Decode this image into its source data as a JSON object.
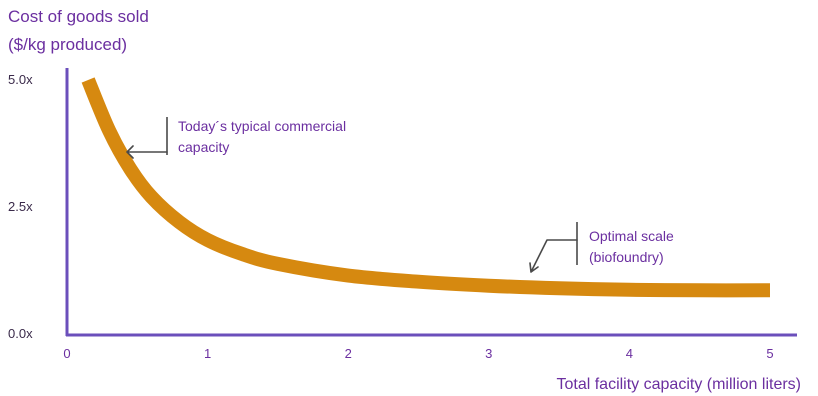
{
  "chart_data": {
    "type": "line",
    "title": "",
    "ylabel_lines": [
      "Cost of goods sold",
      "($/kg produced)"
    ],
    "xlabel": "Total facility capacity (million liters)",
    "x_ticks": [
      {
        "value": 0,
        "label": "0"
      },
      {
        "value": 1,
        "label": "1"
      },
      {
        "value": 2,
        "label": "2"
      },
      {
        "value": 3,
        "label": "3"
      },
      {
        "value": 4,
        "label": "4"
      },
      {
        "value": 5,
        "label": "5"
      }
    ],
    "y_ticks": [
      {
        "value": 0,
        "label": "0.0x"
      },
      {
        "value": 2.5,
        "label": "2.5x"
      },
      {
        "value": 5,
        "label": "5.0x"
      }
    ],
    "xlim": [
      0,
      5.3
    ],
    "ylim": [
      0,
      5.5
    ],
    "grid": false,
    "series": [
      {
        "color": "#d68910",
        "x": [
          0.15,
          0.3,
          0.45,
          0.6,
          0.8,
          1.0,
          1.25,
          1.5,
          2.0,
          2.5,
          3.0,
          3.5,
          4.0,
          4.5,
          5.0
        ],
        "y": [
          5.0,
          4.0,
          3.25,
          2.7,
          2.2,
          1.85,
          1.57,
          1.38,
          1.15,
          1.03,
          0.95,
          0.9,
          0.87,
          0.86,
          0.86
        ]
      }
    ],
    "annotations": [
      {
        "lines": [
          "Today´s typical commercial",
          "capacity"
        ],
        "x": 0.5,
        "y": 3.9
      },
      {
        "lines": [
          "Optimal scale",
          "(biofoundry)"
        ],
        "x": 3.5,
        "y": 1.1
      }
    ]
  },
  "colors": {
    "axis": "#6b4fbb",
    "curve": "#d68910",
    "text": "#6b2fa0",
    "callout": "#4a4a4a"
  }
}
